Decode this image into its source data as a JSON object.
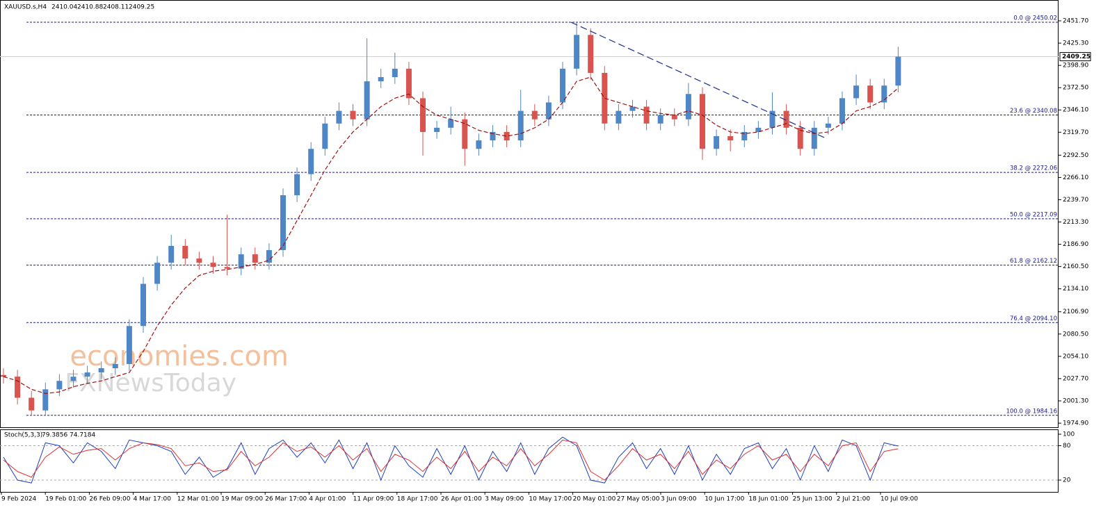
{
  "header": {
    "symbol": "XAUUSD.s,H4",
    "ohlc": [
      2410.04,
      2410.88,
      2408.11,
      2409.25
    ]
  },
  "watermarks": [
    "economies.com",
    "FXNewsToday"
  ],
  "chart_data": [
    {
      "type": "candlestick",
      "open": [
        2032,
        2030,
        2005,
        1990,
        2015,
        2025,
        2030,
        2035,
        2040,
        2045,
        2090,
        2140,
        2165,
        2185,
        2170,
        2165,
        2160,
        2158,
        2175,
        2165,
        2180,
        2245,
        2270,
        2300,
        2330,
        2345,
        2335,
        2380,
        2385,
        2395,
        2360,
        2320,
        2325,
        2335,
        2300,
        2310,
        2320,
        2310,
        2345,
        2335,
        2355,
        2395,
        2435,
        2390,
        2330,
        2345,
        2350,
        2330,
        2340,
        2335,
        2365,
        2300,
        2315,
        2310,
        2320,
        2325,
        2345,
        2325,
        2300,
        2325,
        2330,
        2360,
        2375,
        2355,
        2375
      ],
      "high": [
        2040,
        2038,
        2013,
        2023,
        2033,
        2038,
        2043,
        2048,
        2053,
        2098,
        2148,
        2173,
        2198,
        2193,
        2178,
        2173,
        2222,
        2183,
        2183,
        2188,
        2253,
        2278,
        2308,
        2338,
        2355,
        2353,
        2431,
        2395,
        2414,
        2403,
        2368,
        2333,
        2350,
        2343,
        2318,
        2328,
        2328,
        2370,
        2353,
        2363,
        2403,
        2450.02,
        2443,
        2398,
        2353,
        2358,
        2358,
        2348,
        2348,
        2378,
        2373,
        2323,
        2323,
        2328,
        2333,
        2367,
        2353,
        2333,
        2333,
        2338,
        2368,
        2388,
        2383,
        2383,
        2421
      ],
      "low": [
        2022,
        1997,
        1984.16,
        1985,
        2007,
        2017,
        2022,
        2027,
        2032,
        2037,
        2082,
        2132,
        2157,
        2162,
        2157,
        2152,
        2150,
        2150,
        2157,
        2157,
        2172,
        2237,
        2262,
        2292,
        2322,
        2327,
        2327,
        2372,
        2377,
        2352,
        2292,
        2312,
        2317,
        2280,
        2292,
        2302,
        2302,
        2302,
        2327,
        2327,
        2347,
        2387,
        2382,
        2322,
        2322,
        2337,
        2322,
        2322,
        2327,
        2327,
        2287,
        2292,
        2297,
        2302,
        2312,
        2317,
        2317,
        2292,
        2292,
        2317,
        2322,
        2352,
        2347,
        2347,
        2367
      ],
      "close": [
        2030,
        2005,
        1990,
        2015,
        2025,
        2030,
        2035,
        2040,
        2045,
        2090,
        2140,
        2165,
        2185,
        2170,
        2165,
        2160,
        2158,
        2175,
        2165,
        2180,
        2245,
        2270,
        2300,
        2330,
        2345,
        2335,
        2380,
        2385,
        2395,
        2360,
        2320,
        2325,
        2335,
        2300,
        2310,
        2320,
        2310,
        2345,
        2335,
        2355,
        2395,
        2435,
        2390,
        2330,
        2345,
        2350,
        2330,
        2340,
        2335,
        2365,
        2300,
        2315,
        2310,
        2320,
        2325,
        2345,
        2325,
        2300,
        2325,
        2330,
        2360,
        2375,
        2355,
        2375,
        2409.25
      ],
      "up_color": "#4f86c6",
      "down_color": "#d9534f",
      "moving_average": {
        "color": "#a01010",
        "values": [
          2030,
          2025,
          2015,
          2010,
          2012,
          2018,
          2022,
          2025,
          2030,
          2035,
          2060,
          2090,
          2115,
          2135,
          2150,
          2155,
          2157,
          2160,
          2163,
          2168,
          2185,
          2215,
          2245,
          2275,
          2300,
          2320,
          2335,
          2350,
          2360,
          2365,
          2350,
          2340,
          2335,
          2330,
          2322,
          2318,
          2315,
          2318,
          2325,
          2335,
          2355,
          2380,
          2385,
          2360,
          2355,
          2350,
          2345,
          2342,
          2340,
          2345,
          2340,
          2328,
          2320,
          2318,
          2320,
          2325,
          2330,
          2322,
          2318,
          2320,
          2330,
          2345,
          2350,
          2358,
          2372
        ]
      },
      "time_labels": [
        "9 Feb 2024",
        "19 Feb 01:00",
        "26 Feb 09:00",
        "4 Mar 17:00",
        "12 Mar 01:00",
        "19 Mar 09:00",
        "26 Mar 17:00",
        "4 Apr 01:00",
        "11 Apr 09:00",
        "18 Apr 17:00",
        "26 Apr 01:00",
        "3 May 09:00",
        "10 May 17:00",
        "20 May 01:00",
        "27 May 05:00",
        "3 Jun 09:00",
        "10 Jun 17:00",
        "18 Jun 01:00",
        "25 Jun 13:00",
        "2 Jul 21:00",
        "10 Jul 09:00"
      ],
      "ylim": [
        1970,
        2476.4
      ],
      "yticks": [
        {
          "value": 2451.7,
          "label": "2451.70"
        },
        {
          "value": 2425.3,
          "label": "2425.30"
        },
        {
          "value": 2398.9,
          "label": "2398.90"
        },
        {
          "value": 2372.5,
          "label": "2372.50"
        },
        {
          "value": 2346.1,
          "label": "2346.10"
        },
        {
          "value": 2319.7,
          "label": "2319.70"
        },
        {
          "value": 2292.5,
          "label": "2292.50"
        },
        {
          "value": 2266.1,
          "label": "2266.10"
        },
        {
          "value": 2239.7,
          "label": "2239.70"
        },
        {
          "value": 2213.3,
          "label": "2213.30"
        },
        {
          "value": 2186.9,
          "label": "2186.90"
        },
        {
          "value": 2160.5,
          "label": "2160.50"
        },
        {
          "value": 2134.1,
          "label": "2134.10"
        },
        {
          "value": 2106.9,
          "label": "2106.90"
        },
        {
          "value": 2080.5,
          "label": "2080.50"
        },
        {
          "value": 2054.1,
          "label": "2054.10"
        },
        {
          "value": 2027.7,
          "label": "2027.70"
        },
        {
          "value": 2001.3,
          "label": "2001.30"
        },
        {
          "value": 1974.9,
          "label": "1974.90"
        }
      ],
      "fib_levels": [
        {
          "label": "0.0 @ 2450.02",
          "value": 2450.02
        },
        {
          "label": "23.6 @ 2340.08",
          "value": 2340.08
        },
        {
          "label": "38.2 @ 2272.06",
          "value": 2272.06
        },
        {
          "label": "50.0 @ 2217.09",
          "value": 2217.09
        },
        {
          "label": "61.8 @ 2162.12",
          "value": 2162.12
        },
        {
          "label": "76.4 @ 2094.10",
          "value": 2094.1
        },
        {
          "label": "100.0 @ 1984.16",
          "value": 1984.16
        }
      ],
      "trendline": {
        "x": [
          40.6,
          58.9
        ],
        "y": [
          2450.02,
          2312
        ],
        "color": "#2b3a8f"
      },
      "last_price": 2409.25
    },
    {
      "type": "stochastic",
      "title": "Stoch(5,3,3)",
      "series": [
        {
          "color": "#1f3fbf",
          "values": [
            60,
            20,
            15,
            85,
            80,
            50,
            85,
            70,
            40,
            90,
            85,
            80,
            70,
            30,
            60,
            25,
            40,
            85,
            30,
            75,
            90,
            60,
            85,
            50,
            90,
            40,
            85,
            20,
            80,
            45,
            25,
            75,
            30,
            80,
            20,
            70,
            35,
            85,
            30,
            75,
            95,
            80,
            20,
            15,
            60,
            85,
            40,
            75,
            30,
            80,
            20,
            65,
            30,
            75,
            85,
            40,
            75,
            20,
            80,
            35,
            90,
            80,
            20,
            85,
            79.3856
          ]
        },
        {
          "color": "#e03030",
          "values": [
            55,
            35,
            25,
            60,
            78,
            65,
            72,
            75,
            55,
            75,
            85,
            82,
            75,
            45,
            50,
            35,
            38,
            70,
            45,
            60,
            85,
            70,
            78,
            60,
            80,
            55,
            75,
            35,
            65,
            55,
            35,
            60,
            40,
            70,
            35,
            60,
            45,
            75,
            45,
            65,
            90,
            85,
            35,
            20,
            45,
            75,
            55,
            65,
            40,
            70,
            30,
            55,
            40,
            65,
            80,
            55,
            65,
            35,
            65,
            45,
            80,
            85,
            35,
            70,
            74.7184
          ]
        }
      ],
      "ylim": [
        -0.6,
        108.5
      ],
      "yticks": [
        100,
        80,
        20
      ],
      "levels": [
        80,
        20
      ]
    }
  ]
}
